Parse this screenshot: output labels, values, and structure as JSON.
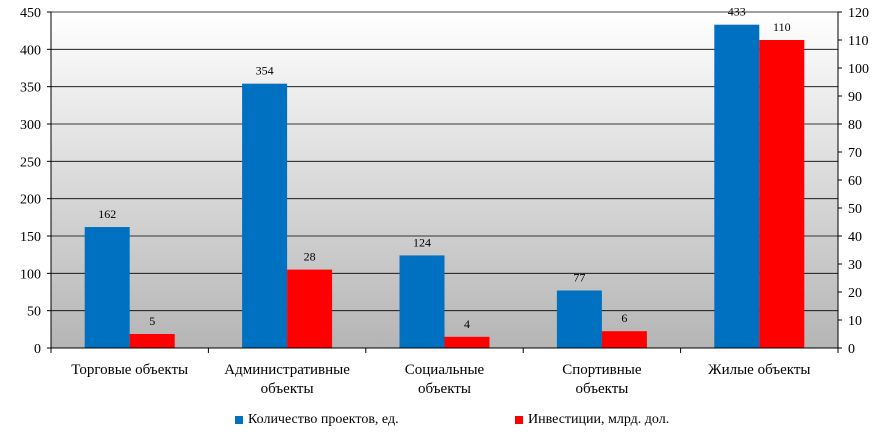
{
  "chart_data": {
    "type": "bar",
    "categories": [
      [
        "Торговые объекты"
      ],
      [
        "Административные",
        "объекты"
      ],
      [
        "Социальные",
        "объекты"
      ],
      [
        "Спортивные",
        "объекты"
      ],
      [
        "Жилые объекты"
      ]
    ],
    "series": [
      {
        "name": "Количество проектов, ед.",
        "values": [
          162,
          354,
          124,
          77,
          433
        ],
        "axis": "left",
        "color": "#0070C0"
      },
      {
        "name": "Инвестиции, млрд. дол.",
        "values": [
          5,
          28,
          4,
          6,
          110
        ],
        "axis": "right",
        "color": "#FF0000"
      }
    ],
    "y_left": {
      "min": 0,
      "max": 450,
      "step": 50
    },
    "y_right": {
      "min": 0,
      "max": 120,
      "step": 10
    },
    "legend_position": "bottom",
    "background": "vertical gradient white to gray"
  },
  "legend": {
    "items": [
      "Количество проектов, ед.",
      "Инвестиции, млрд. дол."
    ]
  }
}
